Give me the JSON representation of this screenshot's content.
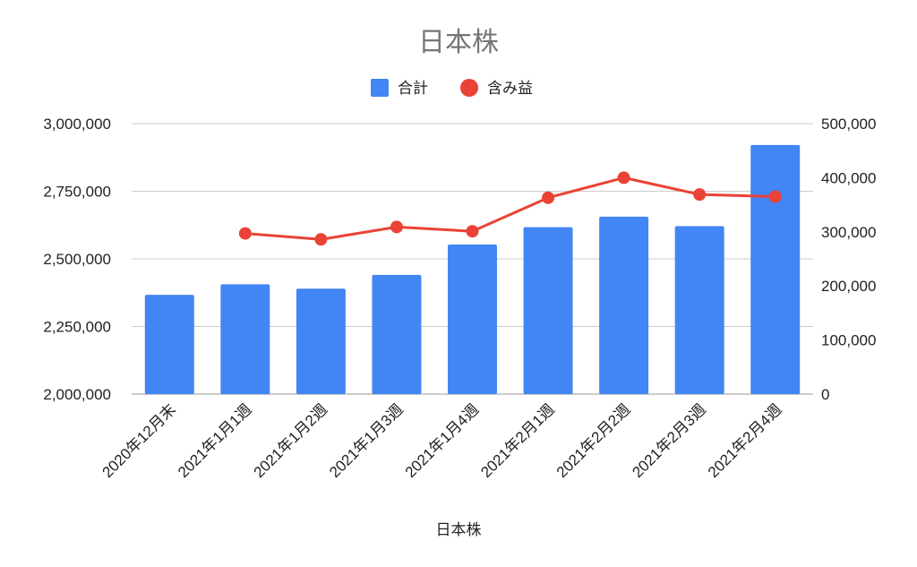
{
  "chart_data": {
    "type": "bar",
    "title": "日本株",
    "xlabel": "日本株",
    "categories": [
      "2020年12月末",
      "2021年1月1週",
      "2021年1月2週",
      "2021年1月3週",
      "2021年1月4週",
      "2021年2月1週",
      "2021年2月2週",
      "2021年2月3週",
      "2021年2月4週"
    ],
    "series": [
      {
        "name": "合計",
        "type": "bar",
        "axis": "left",
        "color": "#4285f4",
        "values": [
          2367000,
          2406000,
          2390000,
          2441000,
          2553000,
          2617000,
          2656000,
          2621000,
          2921000
        ]
      },
      {
        "name": "含み益",
        "type": "line",
        "axis": "right",
        "color": "#ea4335",
        "values": [
          null,
          297000,
          286000,
          309000,
          301000,
          363000,
          400000,
          369000,
          365000
        ]
      }
    ],
    "ylim_left": [
      2000000,
      3000000
    ],
    "yticks_left": [
      "2,000,000",
      "2,250,000",
      "2,500,000",
      "2,750,000",
      "3,000,000"
    ],
    "ylim_right": [
      0,
      500000
    ],
    "yticks_right": [
      "0",
      "100,000",
      "200,000",
      "300,000",
      "400,000",
      "500,000"
    ],
    "grid": true,
    "legend": "top"
  }
}
